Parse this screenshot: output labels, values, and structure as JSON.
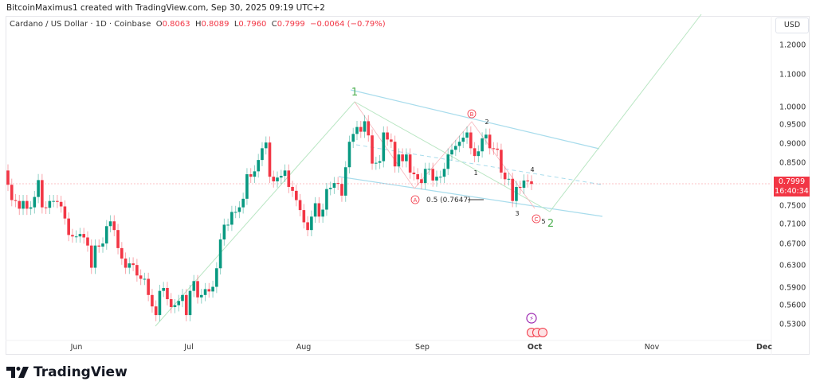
{
  "header": {
    "credit": "BitcoinMaximus1 created with TradingView.com, Sep 30, 2025 09:19 UTC+2"
  },
  "legend": {
    "symbol": "Cardano / US Dollar · 1D · Coinbase",
    "o_label": "O",
    "o": "0.8063",
    "h_label": "H",
    "h": "0.8089",
    "l_label": "L",
    "l": "0.7960",
    "c_label": "C",
    "c": "0.7999",
    "change": "−0.0064 (−0.79%)"
  },
  "price_axis": {
    "currency": "USD",
    "scale": "log",
    "ticks": [
      "1.2000",
      "1.1000",
      "1.0000",
      "0.9500",
      "0.9000",
      "0.8500",
      "0.7500",
      "0.7100",
      "0.6700",
      "0.6300",
      "0.5900",
      "0.5600",
      "0.5300"
    ],
    "last_price": "0.7999",
    "countdown": "16:40:34"
  },
  "time_axis": {
    "ticks": [
      "Jun",
      "Jul",
      "Aug",
      "Sep",
      "Oct",
      "Nov",
      "Dec"
    ]
  },
  "colors": {
    "up": "#089981",
    "down": "#f23645",
    "channel": "#a8dcec",
    "wave": "#b9e6c3",
    "abc": "#f7b6bd"
  },
  "annotations": {
    "wave_1": "1",
    "wave_2": "2",
    "abc": [
      "A",
      "B",
      "C"
    ],
    "sub_waves": [
      "1",
      "2",
      "3",
      "4",
      "5"
    ],
    "fib": "0.5 (0.7647)"
  },
  "branding": {
    "logo": "TradingView"
  },
  "chart_data": {
    "type": "candlestick",
    "title": "Cardano / US Dollar · 1D · Coinbase",
    "x_start": "2025-05-14",
    "x_end": "2025-09-30",
    "interval": "1D",
    "yscale": "log",
    "ylim": [
      0.515,
      1.26
    ],
    "first_open": 0.832,
    "closes": [
      0.798,
      0.763,
      0.761,
      0.744,
      0.761,
      0.744,
      0.747,
      0.77,
      0.809,
      0.747,
      0.746,
      0.761,
      0.761,
      0.759,
      0.749,
      0.723,
      0.689,
      0.686,
      0.686,
      0.691,
      0.684,
      0.668,
      0.626,
      0.668,
      0.666,
      0.672,
      0.707,
      0.717,
      0.699,
      0.663,
      0.643,
      0.626,
      0.634,
      0.631,
      0.612,
      0.606,
      0.606,
      0.578,
      0.559,
      0.545,
      0.585,
      0.59,
      0.571,
      0.558,
      0.561,
      0.568,
      0.578,
      0.545,
      0.585,
      0.602,
      0.574,
      0.578,
      0.588,
      0.584,
      0.592,
      0.625,
      0.68,
      0.71,
      0.71,
      0.737,
      0.737,
      0.747,
      0.766,
      0.823,
      0.817,
      0.83,
      0.858,
      0.888,
      0.903,
      0.817,
      0.806,
      0.815,
      0.819,
      0.832,
      0.793,
      0.784,
      0.763,
      0.741,
      0.715,
      0.699,
      0.727,
      0.756,
      0.727,
      0.742,
      0.788,
      0.791,
      0.802,
      0.8,
      0.773,
      0.84,
      0.905,
      0.926,
      0.945,
      0.932,
      0.961,
      0.922,
      0.849,
      0.851,
      0.855,
      0.93,
      0.911,
      0.905,
      0.842,
      0.872,
      0.855,
      0.872,
      0.827,
      0.823,
      0.811,
      0.802,
      0.836,
      0.836,
      0.808,
      0.817,
      0.817,
      0.836,
      0.872,
      0.884,
      0.894,
      0.905,
      0.916,
      0.93,
      0.888,
      0.868,
      0.88,
      0.914,
      0.924,
      0.888,
      0.887,
      0.884,
      0.827,
      0.811,
      0.812,
      0.761,
      0.793,
      0.791,
      0.808,
      0.806,
      0.7999
    ]
  }
}
